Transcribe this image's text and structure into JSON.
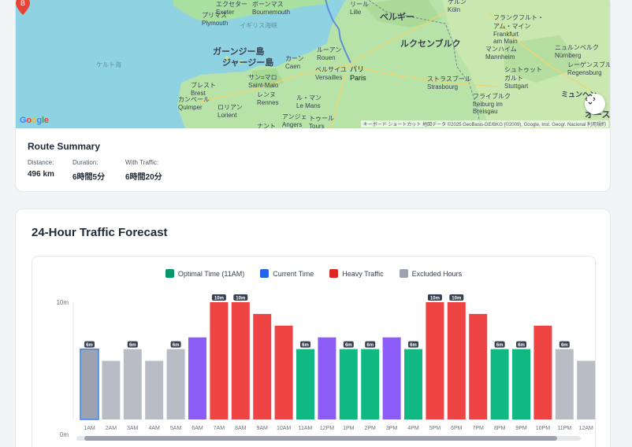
{
  "map": {
    "labels": {
      "exeter": "エクセター\nExeter",
      "bournemouth": "ボーンマス\nBournemouth",
      "plymouth": "プリマス\nPlymouth",
      "channel": "イギリス海峡",
      "celtic": "ケルト海",
      "guernsey": "ガーンジー島",
      "jersey": "ジャージー島",
      "caen": "カーン\nCaen",
      "rouen": "ルーアン\nRouen",
      "stmalo": "サン=マロ\nSaint-Malo",
      "brest": "ブレスト\nBrest",
      "quimper": "カンペール\nQuimper",
      "rennes": "レンヌ\nRennes",
      "lorient": "ロリアン\nLorient",
      "lemans": "ル・マン\nLe Mans",
      "angers": "アンジェ\nAngers",
      "tours": "トゥール\nTours",
      "nantes": "ナント",
      "versailles": "ベルサイユ\nVersailles",
      "paris": "パリ\nParis",
      "lille": "リール\nLille",
      "belgium": "ベルギー",
      "luxembourg": "ルクセンブルク",
      "koln": "ケルン\nKöln",
      "frankfurt": "フランクフルト・\nアム・マイン\nFrankfurt\nam Main",
      "mannheim": "マンハイム\nMannheim",
      "nurnberg": "ニュルンベルク\nNürnberg",
      "regensburg": "レーゲンスブルク\nRegensburg",
      "stuttgart": "シュトゥット\nガルト\nStuttgart",
      "strasbourg": "ストラスブール\nStrasbourg",
      "freiburg": "フライブルク\nfreiburg im\nBreisgau",
      "munchen": "ミュンヘン",
      "aus": "オース"
    },
    "google": "Google",
    "attribution": "キーボード ショートカット   地図データ ©2025 GeoBasis-DE/BKG (©2009), Google, Inst. Geogr. Nacional     利用規約",
    "pin_label": "B"
  },
  "summary": {
    "title": "Route Summary",
    "distance_label": "Distance:",
    "distance_value": "496 km",
    "duration_label": "Duration:",
    "duration_value": "6時間5分",
    "traffic_label": "With Traffic:",
    "traffic_value": "6時間20分"
  },
  "forecast": {
    "title": "24-Hour Traffic Forecast",
    "legend": [
      {
        "label": "Optimal Time (11AM)",
        "color": "#059669"
      },
      {
        "label": "Current Time",
        "color": "#2563eb"
      },
      {
        "label": "Heavy Traffic",
        "color": "#dc2626"
      },
      {
        "label": "Excluded Hours",
        "color": "#9ca3af"
      }
    ]
  },
  "colors": {
    "gray": "#b8bcc4",
    "green": "#10b981",
    "red": "#ef4444",
    "purple": "#8b5cf6",
    "selected": "#9ca3af"
  },
  "chart_data": {
    "type": "bar",
    "ylim": [
      0,
      10
    ],
    "y_ticks": [
      "0m",
      "10m"
    ],
    "categories": [
      "1AM",
      "2AM",
      "3AM",
      "4AM",
      "5AM",
      "6AM",
      "7AM",
      "8AM",
      "9AM",
      "10AM",
      "11AM",
      "12PM",
      "1PM",
      "2PM",
      "3PM",
      "4PM",
      "5PM",
      "6PM",
      "7PM",
      "8PM",
      "9PM",
      "10PM",
      "11PM",
      "12AM"
    ],
    "values": [
      6,
      5,
      6,
      5,
      6,
      7,
      10,
      10,
      9,
      8,
      6,
      7,
      6,
      6,
      7,
      6,
      10,
      10,
      9,
      6,
      6,
      8,
      6,
      5
    ],
    "kinds": [
      "selected",
      "gray",
      "gray",
      "gray",
      "gray",
      "purple",
      "red",
      "red",
      "red",
      "red",
      "green",
      "purple",
      "green",
      "green",
      "purple",
      "green",
      "red",
      "red",
      "red",
      "green",
      "green",
      "red",
      "gray",
      "gray"
    ],
    "labels": [
      "6m",
      "",
      "6m",
      "",
      "6m",
      "",
      "10m",
      "10m",
      "",
      "",
      "6m",
      "",
      "6m",
      "6m",
      "",
      "6m",
      "10m",
      "10m",
      "",
      "6m",
      "6m",
      "",
      "6m",
      ""
    ]
  }
}
